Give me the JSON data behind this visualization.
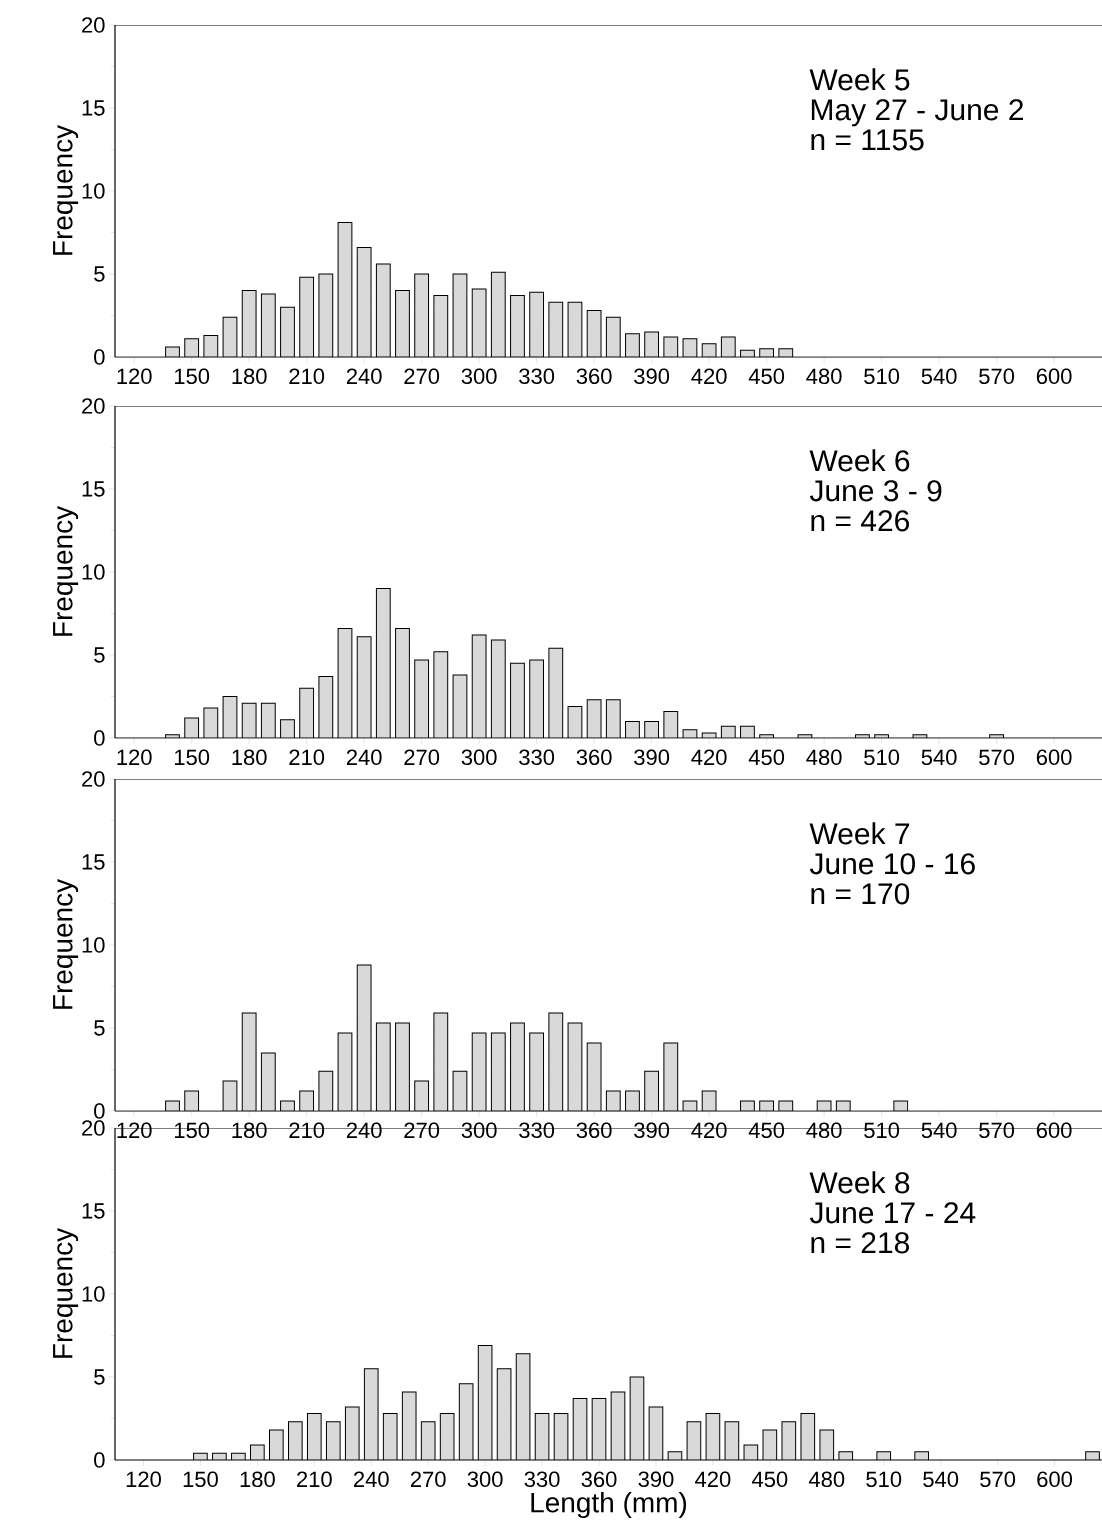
{
  "chart_data": [
    {
      "type": "bar",
      "ylabel": "Frequency",
      "color": "#d9d9d9",
      "annotations": [
        "Week 5",
        "May 27 - June 2",
        "n = 1155"
      ],
      "xlim": [
        110,
        625
      ],
      "xticks": [
        120,
        150,
        180,
        210,
        240,
        270,
        300,
        330,
        360,
        390,
        420,
        450,
        480,
        510,
        540,
        570,
        600
      ],
      "ylim": [
        0,
        20
      ],
      "yticks": [
        0,
        5,
        10,
        15,
        20
      ],
      "x": [
        140,
        150,
        160,
        170,
        180,
        190,
        200,
        210,
        220,
        230,
        240,
        250,
        260,
        270,
        280,
        290,
        300,
        310,
        320,
        330,
        340,
        350,
        360,
        370,
        380,
        390,
        400,
        410,
        420,
        430,
        440,
        450,
        460
      ],
      "values": [
        0.6,
        1.1,
        1.3,
        2.4,
        4.0,
        3.8,
        3.0,
        4.8,
        5.0,
        8.1,
        6.6,
        5.6,
        4.0,
        5.0,
        3.7,
        5.0,
        4.1,
        5.1,
        3.7,
        3.9,
        3.3,
        3.3,
        2.8,
        2.4,
        1.4,
        1.5,
        1.2,
        1.1,
        0.8,
        1.2,
        0.4,
        0.5,
        0.5
      ]
    },
    {
      "type": "bar",
      "ylabel": "Frequency",
      "color": "#d9d9d9",
      "annotations": [
        "Week 6",
        "June 3 - 9",
        "n = 426"
      ],
      "xlim": [
        110,
        625
      ],
      "xticks": [
        120,
        150,
        180,
        210,
        240,
        270,
        300,
        330,
        360,
        390,
        420,
        450,
        480,
        510,
        540,
        570,
        600
      ],
      "ylim": [
        0,
        20
      ],
      "yticks": [
        0,
        5,
        10,
        15,
        20
      ],
      "x": [
        140,
        150,
        160,
        170,
        180,
        190,
        200,
        210,
        220,
        230,
        240,
        250,
        260,
        270,
        280,
        290,
        300,
        310,
        320,
        330,
        340,
        350,
        360,
        370,
        380,
        390,
        400,
        410,
        420,
        430,
        440,
        450,
        470,
        500,
        510,
        530,
        570
      ],
      "values": [
        0.2,
        1.2,
        1.8,
        2.5,
        2.1,
        2.1,
        1.1,
        3.0,
        3.7,
        6.6,
        6.1,
        9.0,
        6.6,
        4.7,
        5.2,
        3.8,
        6.2,
        5.9,
        4.5,
        4.7,
        5.4,
        1.9,
        2.3,
        2.3,
        1.0,
        1.0,
        1.6,
        0.5,
        0.3,
        0.7,
        0.7,
        0.2,
        0.2,
        0.2,
        0.2,
        0.2,
        0.2
      ]
    },
    {
      "type": "bar",
      "ylabel": "Frequency",
      "color": "#d9d9d9",
      "annotations": [
        "Week 7",
        "June 10 - 16",
        "n = 170"
      ],
      "xlim": [
        110,
        625
      ],
      "xticks": [
        120,
        150,
        180,
        210,
        240,
        270,
        300,
        330,
        360,
        390,
        420,
        450,
        480,
        510,
        540,
        570,
        600
      ],
      "ylim": [
        0,
        20
      ],
      "yticks": [
        0,
        5,
        10,
        15,
        20
      ],
      "x": [
        140,
        150,
        170,
        180,
        190,
        200,
        210,
        220,
        230,
        240,
        250,
        260,
        270,
        280,
        290,
        300,
        310,
        320,
        330,
        340,
        350,
        360,
        370,
        380,
        390,
        400,
        410,
        420,
        440,
        450,
        460,
        480,
        490,
        520
      ],
      "values": [
        0.6,
        1.2,
        1.8,
        5.9,
        3.5,
        0.6,
        1.2,
        2.4,
        4.7,
        8.8,
        5.3,
        5.3,
        1.8,
        5.9,
        2.4,
        4.7,
        4.7,
        5.3,
        4.7,
        5.9,
        5.3,
        4.1,
        1.2,
        1.2,
        2.4,
        4.1,
        0.6,
        1.2,
        0.6,
        0.6,
        0.6,
        0.6,
        0.6,
        0.6
      ]
    },
    {
      "type": "bar",
      "ylabel": "Frequency",
      "xlabel": "Length (mm)",
      "color": "#d9d9d9",
      "annotations": [
        "Week 8",
        "June 17 - 24",
        "n = 218"
      ],
      "xlim": [
        105,
        625
      ],
      "xticks": [
        120,
        150,
        180,
        210,
        240,
        270,
        300,
        330,
        360,
        390,
        420,
        450,
        480,
        510,
        540,
        570,
        600
      ],
      "ylim": [
        0,
        20
      ],
      "yticks": [
        0,
        5,
        10,
        15,
        20
      ],
      "x": [
        150,
        160,
        170,
        180,
        190,
        200,
        210,
        220,
        230,
        240,
        250,
        260,
        270,
        280,
        290,
        300,
        310,
        320,
        330,
        340,
        350,
        360,
        370,
        380,
        390,
        400,
        410,
        420,
        430,
        440,
        450,
        460,
        470,
        480,
        490,
        510,
        530,
        620
      ],
      "values": [
        0.4,
        0.4,
        0.4,
        0.9,
        1.8,
        2.3,
        2.8,
        2.3,
        3.2,
        5.5,
        2.8,
        4.1,
        2.3,
        2.8,
        4.6,
        6.9,
        5.5,
        6.4,
        2.8,
        2.8,
        3.7,
        3.7,
        4.1,
        5.0,
        3.2,
        0.5,
        2.3,
        2.8,
        2.3,
        0.9,
        1.8,
        2.3,
        2.8,
        1.8,
        0.5,
        0.5,
        0.5,
        0.5
      ]
    }
  ]
}
